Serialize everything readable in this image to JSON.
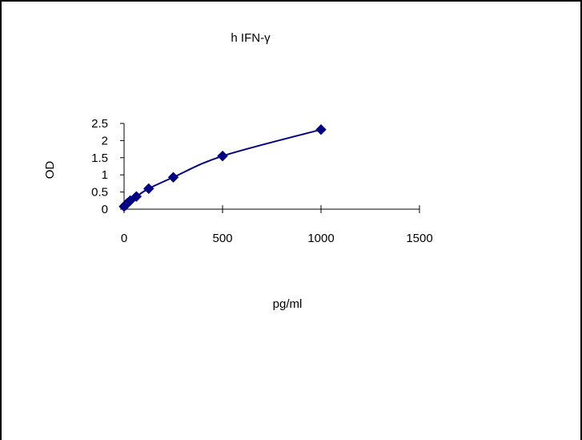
{
  "chart_data": {
    "type": "scatter",
    "title": "h IFN-γ",
    "xlabel": "pg/ml",
    "ylabel": "OD",
    "xlim": [
      0,
      1500
    ],
    "ylim": [
      0,
      2.5
    ],
    "x_ticks": [
      0,
      500,
      1000,
      1500
    ],
    "y_ticks": [
      0,
      0.5,
      1,
      1.5,
      2,
      2.5
    ],
    "x_tick_labels": [
      "0",
      "500",
      "1000",
      "1500"
    ],
    "y_tick_labels": [
      "0",
      "0.5",
      "1",
      "1.5",
      "2",
      "2.5"
    ],
    "grid": false,
    "legend": "none",
    "trendline": "smooth curve through points",
    "series": [
      {
        "marker": "diamond",
        "color": "#000080",
        "x": [
          0,
          7.8,
          15.6,
          31.2,
          62.5,
          125,
          250,
          500,
          1000
        ],
        "y": [
          0.08,
          0.12,
          0.17,
          0.25,
          0.37,
          0.6,
          0.93,
          1.55,
          2.32
        ]
      }
    ]
  }
}
